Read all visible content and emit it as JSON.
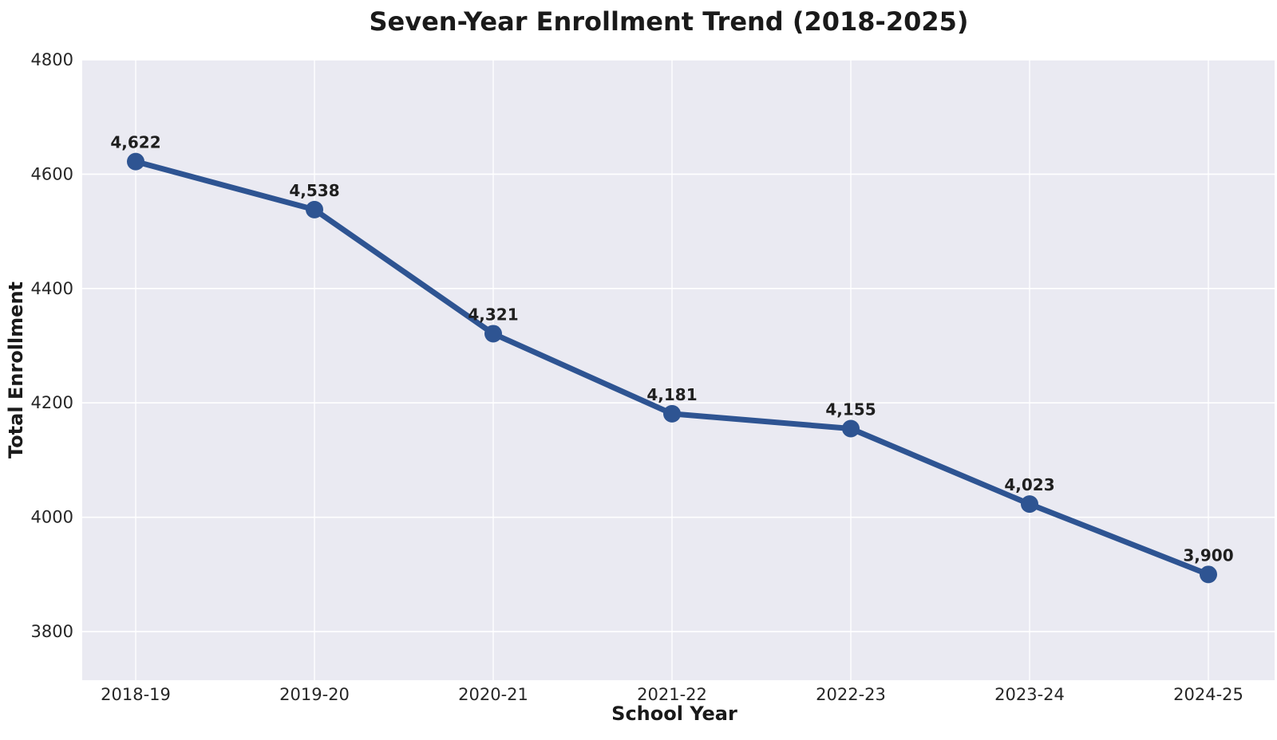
{
  "chart_data": {
    "type": "line",
    "title": "Seven-Year Enrollment Trend (2018-2025)",
    "xlabel": "School Year",
    "ylabel": "Total Enrollment",
    "categories": [
      "2018-19",
      "2019-20",
      "2020-21",
      "2021-22",
      "2022-23",
      "2023-24",
      "2024-25"
    ],
    "series": [
      {
        "name": "Total Enrollment",
        "values": [
          4622,
          4538,
          4321,
          4181,
          4155,
          4023,
          3900
        ],
        "point_labels": [
          "4,622",
          "4,538",
          "4,321",
          "4,181",
          "4,155",
          "4,023",
          "3,900"
        ]
      }
    ],
    "y_ticks": [
      3800,
      4000,
      4200,
      4400,
      4600,
      4800
    ],
    "y_tick_labels": [
      "3800",
      "4000",
      "4200",
      "4400",
      "4600",
      "4800"
    ],
    "ylim": [
      3715,
      4800
    ],
    "grid": true,
    "legend": "none",
    "colors": {
      "line": "#2e5492",
      "marker": "#2e5492",
      "plot_bg": "#eaeaf2",
      "grid": "#ffffff",
      "tick_text": "#262626",
      "label_text": "#1f1f1f",
      "title_text": "#1a1a1a",
      "page_bg": "#ffffff"
    }
  }
}
